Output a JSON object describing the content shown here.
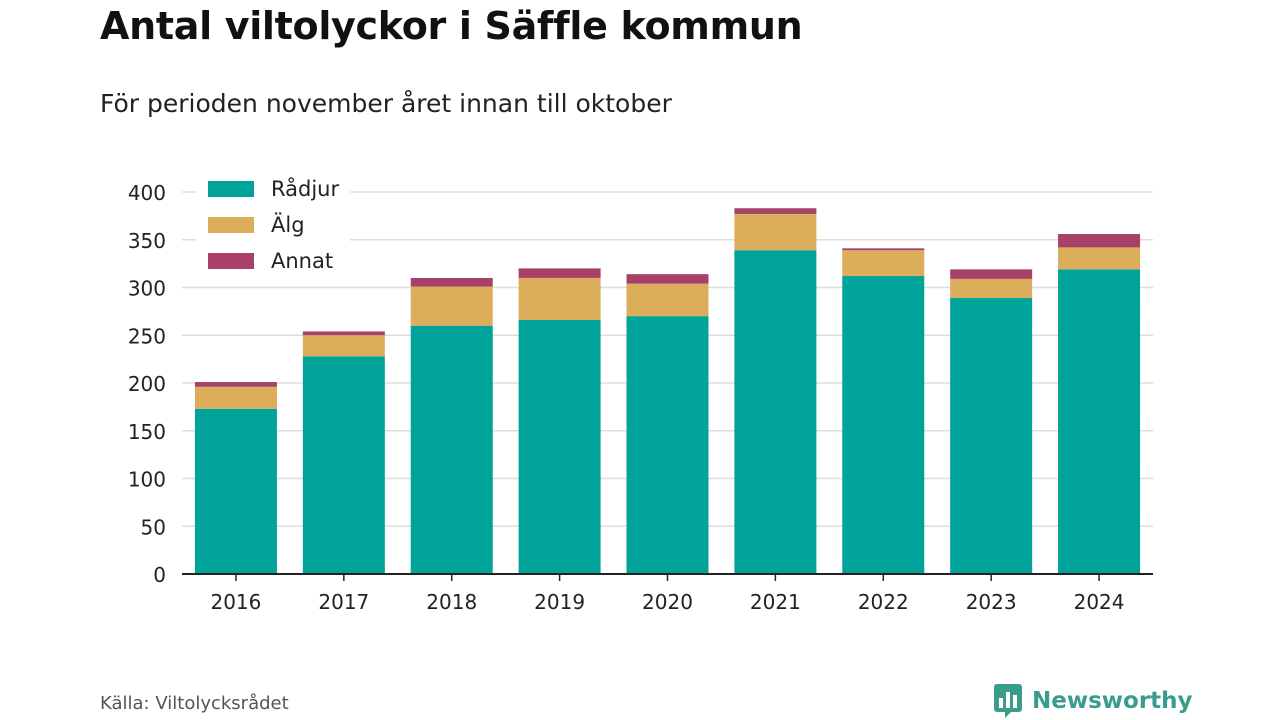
{
  "title": "Antal viltolyckor i Säffle kommun",
  "subtitle": "För perioden november året innan till oktober",
  "source": "Källa: Viltolycksrådet",
  "brand": {
    "name": "Newsworthy",
    "icon": "bar-chart-speech-bubble-icon",
    "color": "#3a9c8c"
  },
  "chart_data": {
    "type": "bar",
    "stacked": true,
    "categories": [
      "2016",
      "2017",
      "2018",
      "2019",
      "2020",
      "2021",
      "2022",
      "2023",
      "2024"
    ],
    "series": [
      {
        "name": "Rådjur",
        "color": "#00a39a",
        "values": [
          173,
          228,
          260,
          266,
          270,
          339,
          312,
          289,
          319
        ]
      },
      {
        "name": "Älg",
        "color": "#dcae5c",
        "values": [
          23,
          22,
          41,
          44,
          34,
          38,
          27,
          20,
          23
        ]
      },
      {
        "name": "Annat",
        "color": "#a8416a",
        "values": [
          5,
          4,
          9,
          10,
          10,
          6,
          2,
          10,
          14
        ]
      }
    ],
    "yticks": [
      0,
      50,
      100,
      150,
      200,
      250,
      300,
      350,
      400
    ],
    "ylim": [
      0,
      400
    ],
    "xlabel": "",
    "ylabel": "",
    "grid": true,
    "legend_position": "top-left"
  }
}
